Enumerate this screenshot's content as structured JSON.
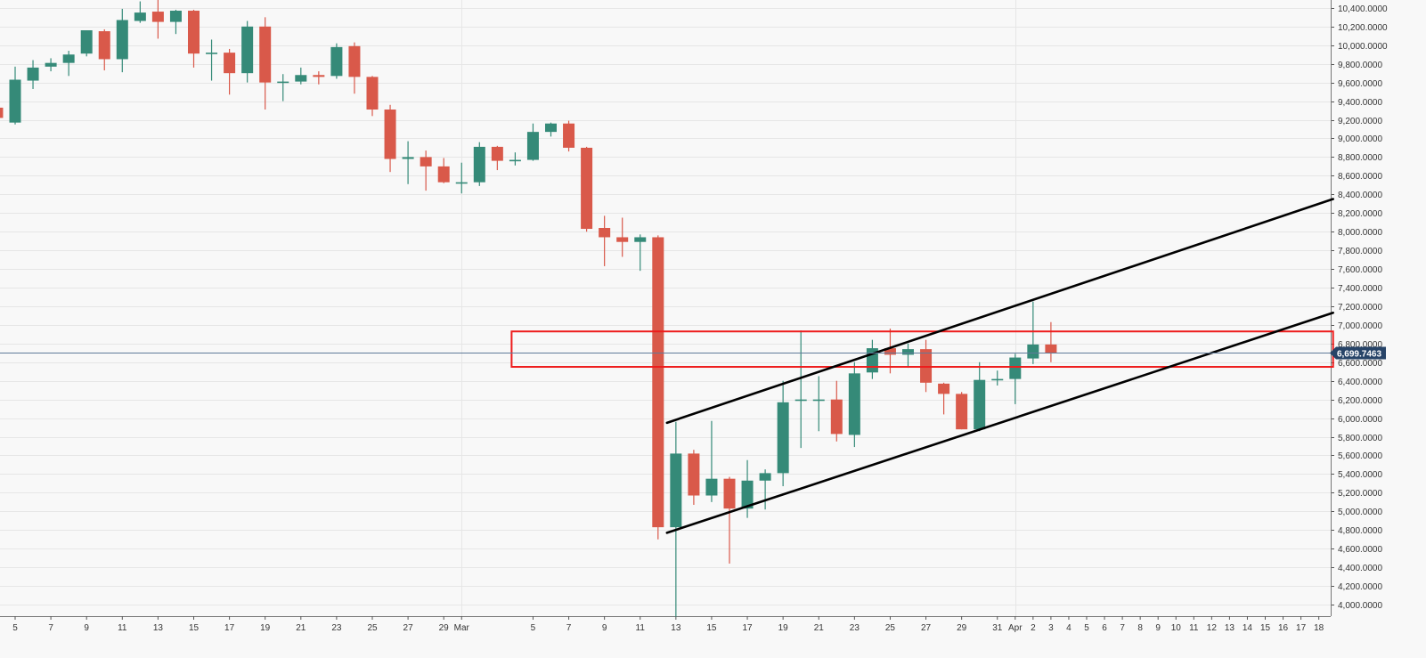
{
  "chart_data": {
    "type": "candlestick",
    "colors": {
      "up": "#358a78",
      "down": "#d9594a",
      "background": "#f8f8f8",
      "grid": "#e6e6e6",
      "trendline": "#000000",
      "zone": "#ee1c1c",
      "price_tag": "#274468",
      "price_line": "#5f7a99"
    },
    "ylim": [
      3900,
      10480
    ],
    "grid": true,
    "y_ticks": [
      {
        "value": 4000,
        "label": "4,000.0000"
      },
      {
        "value": 4200,
        "label": "4,200.0000"
      },
      {
        "value": 4400,
        "label": "4,400.0000"
      },
      {
        "value": 4600,
        "label": "4,600.0000"
      },
      {
        "value": 4800,
        "label": "4,800.0000"
      },
      {
        "value": 5000,
        "label": "5,000.0000"
      },
      {
        "value": 5200,
        "label": "5,200.0000"
      },
      {
        "value": 5400,
        "label": "5,400.0000"
      },
      {
        "value": 5600,
        "label": "5,600.0000"
      },
      {
        "value": 5800,
        "label": "5,800.0000"
      },
      {
        "value": 6000,
        "label": "6,000.0000"
      },
      {
        "value": 6200,
        "label": "6,200.0000"
      },
      {
        "value": 6400,
        "label": "6,400.0000"
      },
      {
        "value": 6600,
        "label": "6,600.0000"
      },
      {
        "value": 6800,
        "label": "6,800.0000"
      },
      {
        "value": 7000,
        "label": "7,000.0000"
      },
      {
        "value": 7200,
        "label": "7,200.0000"
      },
      {
        "value": 7400,
        "label": "7,400.0000"
      },
      {
        "value": 7600,
        "label": "7,600.0000"
      },
      {
        "value": 7800,
        "label": "7,800.0000"
      },
      {
        "value": 8000,
        "label": "8,000.0000"
      },
      {
        "value": 8200,
        "label": "8,200.0000"
      },
      {
        "value": 8400,
        "label": "8,400.0000"
      },
      {
        "value": 8600,
        "label": "8,600.0000"
      },
      {
        "value": 8800,
        "label": "8,800.0000"
      },
      {
        "value": 9000,
        "label": "9,000.0000"
      },
      {
        "value": 9200,
        "label": "9,200.0000"
      },
      {
        "value": 9400,
        "label": "9,400.0000"
      },
      {
        "value": 9600,
        "label": "9,600.0000"
      },
      {
        "value": 9800,
        "label": "9,800.0000"
      },
      {
        "value": 10000,
        "label": "10,000.0000"
      },
      {
        "value": 10200,
        "label": "10,200.0000"
      },
      {
        "value": 10400,
        "label": "10,400.0000"
      }
    ],
    "x_ticks": [
      {
        "i": 0,
        "label": "5"
      },
      {
        "i": 2,
        "label": "7"
      },
      {
        "i": 4,
        "label": "9"
      },
      {
        "i": 6,
        "label": "11"
      },
      {
        "i": 8,
        "label": "13"
      },
      {
        "i": 10,
        "label": "15"
      },
      {
        "i": 12,
        "label": "17"
      },
      {
        "i": 14,
        "label": "19"
      },
      {
        "i": 16,
        "label": "21"
      },
      {
        "i": 18,
        "label": "23"
      },
      {
        "i": 20,
        "label": "25"
      },
      {
        "i": 22,
        "label": "27"
      },
      {
        "i": 24,
        "label": "29"
      },
      {
        "i": 25,
        "label": "Mar"
      },
      {
        "i": 29,
        "label": "5"
      },
      {
        "i": 31,
        "label": "7"
      },
      {
        "i": 33,
        "label": "9"
      },
      {
        "i": 35,
        "label": "11"
      },
      {
        "i": 37,
        "label": "13"
      },
      {
        "i": 39,
        "label": "15"
      },
      {
        "i": 41,
        "label": "17"
      },
      {
        "i": 43,
        "label": "19"
      },
      {
        "i": 45,
        "label": "21"
      },
      {
        "i": 47,
        "label": "23"
      },
      {
        "i": 49,
        "label": "25"
      },
      {
        "i": 51,
        "label": "27"
      },
      {
        "i": 53,
        "label": "29"
      },
      {
        "i": 55,
        "label": "31"
      },
      {
        "i": 56,
        "label": "Apr"
      },
      {
        "i": 57,
        "label": "2"
      },
      {
        "i": 58,
        "label": "3"
      },
      {
        "i": 59,
        "label": "4"
      },
      {
        "i": 60,
        "label": "5"
      },
      {
        "i": 61,
        "label": "6"
      },
      {
        "i": 62,
        "label": "7"
      },
      {
        "i": 63,
        "label": "8"
      },
      {
        "i": 64,
        "label": "9"
      },
      {
        "i": 65,
        "label": "10"
      },
      {
        "i": 66,
        "label": "11"
      },
      {
        "i": 67,
        "label": "12"
      },
      {
        "i": 68,
        "label": "13"
      },
      {
        "i": 69,
        "label": "14"
      },
      {
        "i": 70,
        "label": "15"
      },
      {
        "i": 71,
        "label": "16"
      },
      {
        "i": 72,
        "label": "17"
      },
      {
        "i": 73,
        "label": "18"
      }
    ],
    "vertical_grid_at": [
      25,
      56
    ],
    "candles": [
      {
        "date": "Feb 4",
        "o": 9330,
        "h": 9350,
        "l": 9190,
        "c": 9220
      },
      {
        "date": "Feb 5",
        "o": 9170,
        "h": 9770,
        "l": 9150,
        "c": 9630
      },
      {
        "date": "Feb 6",
        "o": 9620,
        "h": 9840,
        "l": 9530,
        "c": 9760
      },
      {
        "date": "Feb 7",
        "o": 9770,
        "h": 9860,
        "l": 9720,
        "c": 9810
      },
      {
        "date": "Feb 8",
        "o": 9810,
        "h": 9940,
        "l": 9670,
        "c": 9900
      },
      {
        "date": "Feb 9",
        "o": 9910,
        "h": 10160,
        "l": 9880,
        "c": 10160
      },
      {
        "date": "Feb 10",
        "o": 10150,
        "h": 10170,
        "l": 9730,
        "c": 9850
      },
      {
        "date": "Feb 11",
        "o": 9850,
        "h": 10390,
        "l": 9710,
        "c": 10270
      },
      {
        "date": "Feb 12",
        "o": 10260,
        "h": 10470,
        "l": 10240,
        "c": 10350
      },
      {
        "date": "Feb 13",
        "o": 10360,
        "h": 10500,
        "l": 10070,
        "c": 10250
      },
      {
        "date": "Feb 14",
        "o": 10250,
        "h": 10380,
        "l": 10120,
        "c": 10370
      },
      {
        "date": "Feb 15",
        "o": 10370,
        "h": 10380,
        "l": 9760,
        "c": 9910
      },
      {
        "date": "Feb 16",
        "o": 9910,
        "h": 10060,
        "l": 9620,
        "c": 9920
      },
      {
        "date": "Feb 17",
        "o": 9920,
        "h": 9960,
        "l": 9470,
        "c": 9700
      },
      {
        "date": "Feb 18",
        "o": 9700,
        "h": 10260,
        "l": 9600,
        "c": 10200
      },
      {
        "date": "Feb 19",
        "o": 10200,
        "h": 10300,
        "l": 9310,
        "c": 9600
      },
      {
        "date": "Feb 20",
        "o": 9600,
        "h": 9690,
        "l": 9400,
        "c": 9610
      },
      {
        "date": "Feb 21",
        "o": 9610,
        "h": 9760,
        "l": 9580,
        "c": 9680
      },
      {
        "date": "Feb 22",
        "o": 9680,
        "h": 9720,
        "l": 9580,
        "c": 9660
      },
      {
        "date": "Feb 23",
        "o": 9670,
        "h": 10020,
        "l": 9640,
        "c": 9980
      },
      {
        "date": "Feb 24",
        "o": 9990,
        "h": 10030,
        "l": 9480,
        "c": 9660
      },
      {
        "date": "Feb 25",
        "o": 9660,
        "h": 9670,
        "l": 9240,
        "c": 9310
      },
      {
        "date": "Feb 26",
        "o": 9310,
        "h": 9360,
        "l": 8640,
        "c": 8780
      },
      {
        "date": "Feb 27",
        "o": 8780,
        "h": 8970,
        "l": 8510,
        "c": 8800
      },
      {
        "date": "Feb 28",
        "o": 8800,
        "h": 8870,
        "l": 8440,
        "c": 8700
      },
      {
        "date": "Feb 29",
        "o": 8700,
        "h": 8790,
        "l": 8520,
        "c": 8530
      },
      {
        "date": "Mar 1",
        "o": 8530,
        "h": 8740,
        "l": 8410,
        "c": 8530
      },
      {
        "date": "Mar 2",
        "o": 8530,
        "h": 8960,
        "l": 8490,
        "c": 8910
      },
      {
        "date": "Mar 3",
        "o": 8910,
        "h": 8920,
        "l": 8660,
        "c": 8760
      },
      {
        "date": "Mar 4",
        "o": 8760,
        "h": 8850,
        "l": 8710,
        "c": 8770
      },
      {
        "date": "Mar 5",
        "o": 8770,
        "h": 9160,
        "l": 8760,
        "c": 9070
      },
      {
        "date": "Mar 6",
        "o": 9070,
        "h": 9170,
        "l": 9020,
        "c": 9160
      },
      {
        "date": "Mar 7",
        "o": 9160,
        "h": 9190,
        "l": 8860,
        "c": 8900
      },
      {
        "date": "Mar 8",
        "o": 8900,
        "h": 8910,
        "l": 8000,
        "c": 8030
      },
      {
        "date": "Mar 9",
        "o": 8040,
        "h": 8170,
        "l": 7630,
        "c": 7940
      },
      {
        "date": "Mar 10",
        "o": 7940,
        "h": 8150,
        "l": 7730,
        "c": 7890
      },
      {
        "date": "Mar 11",
        "o": 7890,
        "h": 7970,
        "l": 7580,
        "c": 7940
      },
      {
        "date": "Mar 12",
        "o": 7940,
        "h": 7960,
        "l": 4700,
        "c": 4830
      },
      {
        "date": "Mar 13",
        "o": 4830,
        "h": 5960,
        "l": 3870,
        "c": 5620
      },
      {
        "date": "Mar 14",
        "o": 5620,
        "h": 5660,
        "l": 5070,
        "c": 5170
      },
      {
        "date": "Mar 15",
        "o": 5170,
        "h": 5970,
        "l": 5100,
        "c": 5350
      },
      {
        "date": "Mar 16",
        "o": 5350,
        "h": 5370,
        "l": 4440,
        "c": 5030
      },
      {
        "date": "Mar 17",
        "o": 5030,
        "h": 5550,
        "l": 4930,
        "c": 5330
      },
      {
        "date": "Mar 18",
        "o": 5330,
        "h": 5450,
        "l": 5020,
        "c": 5410
      },
      {
        "date": "Mar 19",
        "o": 5410,
        "h": 6400,
        "l": 5270,
        "c": 6170
      },
      {
        "date": "Mar 20",
        "o": 6200,
        "h": 6940,
        "l": 5680,
        "c": 6200
      },
      {
        "date": "Mar 21",
        "o": 6200,
        "h": 6450,
        "l": 5860,
        "c": 6200
      },
      {
        "date": "Mar 22",
        "o": 6200,
        "h": 6400,
        "l": 5750,
        "c": 5830
      },
      {
        "date": "Mar 23",
        "o": 5820,
        "h": 6600,
        "l": 5690,
        "c": 6480
      },
      {
        "date": "Mar 24",
        "o": 6490,
        "h": 6840,
        "l": 6420,
        "c": 6750
      },
      {
        "date": "Mar 25",
        "o": 6750,
        "h": 6960,
        "l": 6480,
        "c": 6680
      },
      {
        "date": "Mar 26",
        "o": 6680,
        "h": 6800,
        "l": 6540,
        "c": 6740
      },
      {
        "date": "Mar 27",
        "o": 6740,
        "h": 6840,
        "l": 6280,
        "c": 6380
      },
      {
        "date": "Mar 28",
        "o": 6370,
        "h": 6380,
        "l": 6040,
        "c": 6260
      },
      {
        "date": "Mar 29",
        "o": 6260,
        "h": 6280,
        "l": 5880,
        "c": 5880
      },
      {
        "date": "Mar 30",
        "o": 5880,
        "h": 6600,
        "l": 5860,
        "c": 6410
      },
      {
        "date": "Mar 31",
        "o": 6410,
        "h": 6510,
        "l": 6350,
        "c": 6420
      },
      {
        "date": "Apr 1",
        "o": 6420,
        "h": 6690,
        "l": 6150,
        "c": 6650
      },
      {
        "date": "Apr 2",
        "o": 6640,
        "h": 7250,
        "l": 6580,
        "c": 6790
      },
      {
        "date": "Apr 3",
        "o": 6790,
        "h": 7030,
        "l": 6600,
        "c": 6700
      }
    ],
    "trendlines": [
      {
        "name": "upper-channel",
        "from": {
          "i": 36.5,
          "v": 5950
        },
        "to": {
          "i": 73.8,
          "v": 8350
        }
      },
      {
        "name": "lower-channel",
        "from": {
          "i": 36.5,
          "v": 4770
        },
        "to": {
          "i": 73.8,
          "v": 7130
        }
      }
    ],
    "zone": {
      "from_i": 27.8,
      "to_i": 73.8,
      "top": 6930,
      "bottom": 6550
    },
    "current_price": {
      "value": 6699.7463,
      "label": "6,699.7463"
    }
  }
}
